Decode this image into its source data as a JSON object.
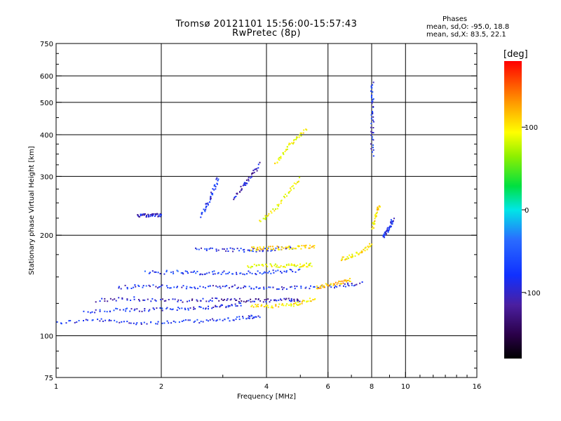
{
  "header": {
    "title_line1": "Tromsø 20121101 15:56:00-15:57:43",
    "title_line2": "RwPretec (8p)"
  },
  "phases": {
    "title": "Phases",
    "o_line": "mean, sd,O: -95.0, 18.8",
    "x_line": "mean, sd,X: 83.5, 22.1"
  },
  "colorbar": {
    "unit": "[deg]",
    "range": [
      -180,
      180
    ],
    "ticks": [
      "100",
      "0",
      "-100"
    ],
    "tick_values": [
      100,
      0,
      -100
    ]
  },
  "chart_data": {
    "type": "scatter",
    "xlabel": "Frequency [MHz]",
    "ylabel": "Stationary phase Virtual Height [km]",
    "xscale": "log",
    "yscale": "log",
    "xlim": [
      1,
      16
    ],
    "ylim": [
      75,
      750
    ],
    "xticks": [
      1,
      2,
      4,
      6,
      8,
      10,
      16
    ],
    "xtick_labels": [
      "1",
      "2",
      "4",
      "6",
      "8",
      "10",
      "16"
    ],
    "yticks": [
      75,
      100,
      200,
      300,
      400,
      500,
      600,
      750
    ],
    "ytick_labels": [
      "75",
      "100",
      "200",
      "300",
      "400",
      "500",
      "600",
      "750"
    ],
    "x_gridlines": [
      2,
      4,
      6,
      8,
      10
    ],
    "y_gridlines": [
      100,
      200,
      300,
      400,
      500,
      600
    ],
    "grid": true,
    "color_variable": "phase [deg]",
    "traces": [
      {
        "x": [
          1.0,
          1.3,
          1.6,
          2.0,
          2.5,
          3.0,
          3.5,
          3.8
        ],
        "y": [
          110,
          112,
          110,
          110,
          111,
          112,
          114,
          115
        ],
        "phase": -100
      },
      {
        "x": [
          1.2,
          1.5,
          1.8,
          2.2,
          2.6,
          3.0,
          3.4
        ],
        "y": [
          118,
          120,
          120,
          121,
          122,
          123,
          125
        ],
        "phase": -100
      },
      {
        "x": [
          1.3,
          1.6,
          2.0,
          2.5,
          3.0,
          3.5,
          4.0,
          4.6,
          5.0
        ],
        "y": [
          128,
          130,
          128,
          128,
          129,
          128,
          128,
          129,
          128
        ],
        "phase": -115
      },
      {
        "x": [
          1.5,
          1.8,
          2.2,
          2.7,
          3.2,
          3.8,
          4.5,
          5.5,
          6.5,
          7.5
        ],
        "y": [
          140,
          142,
          140,
          141,
          141,
          140,
          140,
          140,
          142,
          144
        ],
        "phase": -100
      },
      {
        "x": [
          1.8,
          2.2,
          2.6,
          3.0,
          3.6,
          4.2,
          5.0
        ],
        "y": [
          155,
          156,
          155,
          155,
          155,
          156,
          158
        ],
        "phase": -95
      },
      {
        "x": [
          2.5,
          3.0,
          3.5,
          4.0,
          4.8
        ],
        "y": [
          182,
          182,
          181,
          182,
          184
        ],
        "phase": -100
      },
      {
        "x": [
          3.2,
          3.4,
          3.6,
          3.8
        ],
        "y": [
          260,
          280,
          300,
          330
        ],
        "phase": -115
      },
      {
        "x": [
          3.6,
          4.0,
          4.6,
          5.0,
          5.5
        ],
        "y": [
          124,
          123,
          124,
          126,
          130
        ],
        "phase": 105
      },
      {
        "x": [
          3.5,
          4.0,
          4.5,
          5.0,
          5.4
        ],
        "y": [
          162,
          163,
          163,
          163,
          164
        ],
        "phase": 95
      },
      {
        "x": [
          3.6,
          4.0,
          4.5,
          5.0,
          5.5
        ],
        "y": [
          183,
          184,
          184,
          185,
          186
        ],
        "phase": 110
      },
      {
        "x": [
          3.8,
          4.2,
          4.6,
          5.0
        ],
        "y": [
          220,
          240,
          270,
          300
        ],
        "phase": 95
      },
      {
        "x": [
          4.2,
          4.5,
          4.8,
          5.2
        ],
        "y": [
          330,
          360,
          390,
          420
        ],
        "phase": 100
      },
      {
        "x": [
          5.5,
          6.0,
          6.5,
          7.0
        ],
        "y": [
          140,
          143,
          145,
          148
        ],
        "phase": 120
      },
      {
        "x": [
          6.5,
          7.0,
          7.5,
          8.0
        ],
        "y": [
          170,
          175,
          180,
          190
        ],
        "phase": 105
      },
      {
        "x": [
          8.0,
          8.2,
          8.4
        ],
        "y": [
          210,
          230,
          250
        ],
        "phase": 110
      },
      {
        "x": [
          8.6,
          8.8,
          9.0,
          9.2
        ],
        "y": [
          200,
          205,
          215,
          225
        ],
        "phase": -100
      },
      {
        "x": [
          8.0,
          8.0,
          8.0,
          8.0
        ],
        "y": [
          350,
          420,
          500,
          580
        ],
        "phase": -100
      },
      {
        "x": [
          1.7,
          1.8,
          1.9,
          2.0
        ],
        "y": [
          230,
          230,
          232,
          230
        ],
        "phase": -115
      },
      {
        "x": [
          2.6,
          2.7,
          2.8,
          2.9
        ],
        "y": [
          230,
          250,
          270,
          300
        ],
        "phase": -100
      }
    ]
  }
}
